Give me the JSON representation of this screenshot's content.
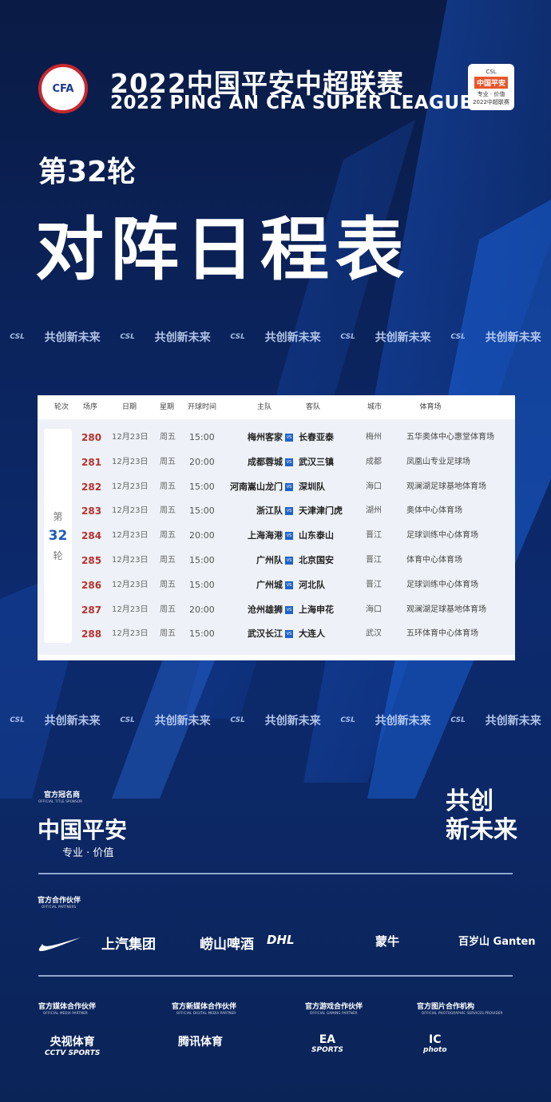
{
  "header": {
    "title_cn": "2022中国平安中超联赛",
    "title_en": "2022 PING AN CFA SUPER LEAGUE",
    "cfa_logo": "CFA",
    "csl_badge": {
      "top": "CSL",
      "name": "中国平安",
      "sub": "专业 · 价值",
      "year": "2022中超联赛"
    }
  },
  "round_label": "第32轮",
  "main_title": "对阵日程表",
  "strip": {
    "logo": "CSL",
    "slogan": "共创新未来"
  },
  "table": {
    "headers": [
      "轮次",
      "场序",
      "日期",
      "星期",
      "开球时间",
      "主队",
      "客队",
      "城市",
      "体育场"
    ],
    "round": {
      "pre": "第",
      "num": "32",
      "post": "轮"
    },
    "vs": "VS",
    "rows": [
      {
        "no": "280",
        "date": "12月23日",
        "day": "周五",
        "time": "15:00",
        "home": "梅州客家",
        "away": "长春亚泰",
        "city": "梅州",
        "venue": "五华奥体中心惠堂体育场"
      },
      {
        "no": "281",
        "date": "12月23日",
        "day": "周五",
        "time": "20:00",
        "home": "成都蓉城",
        "away": "武汉三镇",
        "city": "成都",
        "venue": "凤凰山专业足球场"
      },
      {
        "no": "282",
        "date": "12月23日",
        "day": "周五",
        "time": "15:00",
        "home": "河南嵩山龙门",
        "away": "深圳队",
        "city": "海口",
        "venue": "观澜湖足球基地体育场"
      },
      {
        "no": "283",
        "date": "12月23日",
        "day": "周五",
        "time": "15:00",
        "home": "浙江队",
        "away": "天津津门虎",
        "city": "湖州",
        "venue": "奥体中心体育场"
      },
      {
        "no": "284",
        "date": "12月23日",
        "day": "周五",
        "time": "20:00",
        "home": "上海海港",
        "away": "山东泰山",
        "city": "晋江",
        "venue": "足球训练中心体育场"
      },
      {
        "no": "285",
        "date": "12月23日",
        "day": "周五",
        "time": "15:00",
        "home": "广州队",
        "away": "北京国安",
        "city": "晋江",
        "venue": "体育中心体育场"
      },
      {
        "no": "286",
        "date": "12月23日",
        "day": "周五",
        "time": "15:00",
        "home": "广州城",
        "away": "河北队",
        "city": "晋江",
        "venue": "足球训练中心体育场"
      },
      {
        "no": "287",
        "date": "12月23日",
        "day": "周五",
        "time": "20:00",
        "home": "沧州雄狮",
        "away": "上海申花",
        "city": "海口",
        "venue": "观澜湖足球基地体育场"
      },
      {
        "no": "288",
        "date": "12月23日",
        "day": "周五",
        "time": "15:00",
        "home": "武汉长江",
        "away": "大连人",
        "city": "武汉",
        "venue": "五环体育中心体育场"
      }
    ]
  },
  "sponsors": {
    "title": {
      "cn": "官方冠名商",
      "en": "OFFICIAL TITLE SPONSOR",
      "name": "中国平安",
      "tag": "专业 · 价值"
    },
    "slogan": {
      "l1": "共创",
      "l2": "新未来"
    },
    "partners": {
      "cn": "官方合作伙伴",
      "en": "OFFICIAL PARTNERS",
      "logos": [
        "上汽集团",
        "崂山啤酒",
        "DHL",
        "蒙牛",
        "百岁山 Ganten"
      ]
    },
    "others": [
      {
        "cn": "官方媒体合作伙伴",
        "en": "OFFICIAL MEDIA PARTNER",
        "logo": "央视体育",
        "logo2": "CCTV SPORTS"
      },
      {
        "cn": "官方新媒体合作伙伴",
        "en": "OFFICIAL DIGITAL MEDIA PARTNER",
        "logo": "腾讯体育",
        "logo2": ""
      },
      {
        "cn": "官方游戏合作伙伴",
        "en": "OFFICIAL GAMING PARTNER",
        "logo": "EA",
        "logo2": "SPORTS"
      },
      {
        "cn": "官方图片合作机构",
        "en": "OFFICIAL PHOTOGRAPHIC SERVICES PROVIDER",
        "logo": "IC",
        "logo2": "photo"
      }
    ]
  },
  "colors": {
    "bg": "#0b1e4a",
    "accent": "#1f63c8",
    "match_no": "#b5322e"
  }
}
